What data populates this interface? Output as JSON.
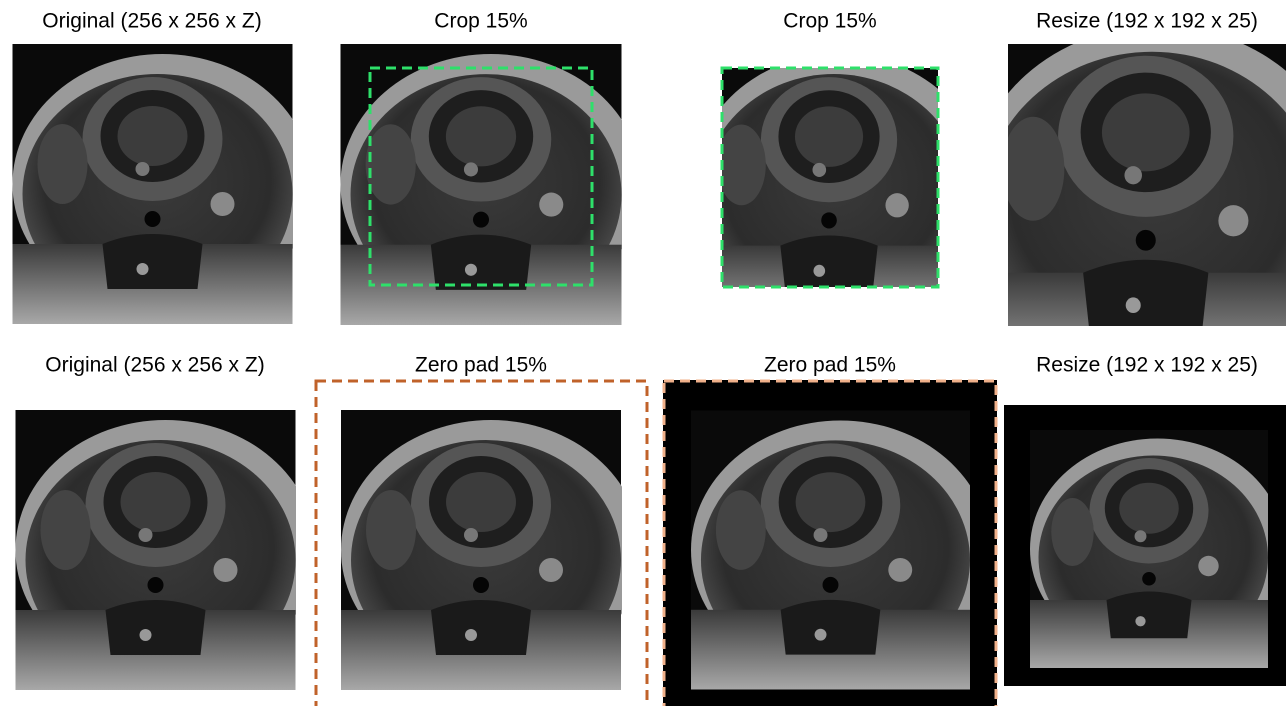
{
  "panels": [
    {
      "title": "Original (256 x 256 x Z)"
    },
    {
      "title": "Crop 15%"
    },
    {
      "title": "Crop 15%"
    },
    {
      "title": "Resize (192 x 192 x 25)"
    },
    {
      "title": "Original (256 x 256 x Z)"
    },
    {
      "title": "Zero pad 15%"
    },
    {
      "title": "Zero pad 15%"
    },
    {
      "title": "Resize (192 x 192 x 25)"
    }
  ]
}
